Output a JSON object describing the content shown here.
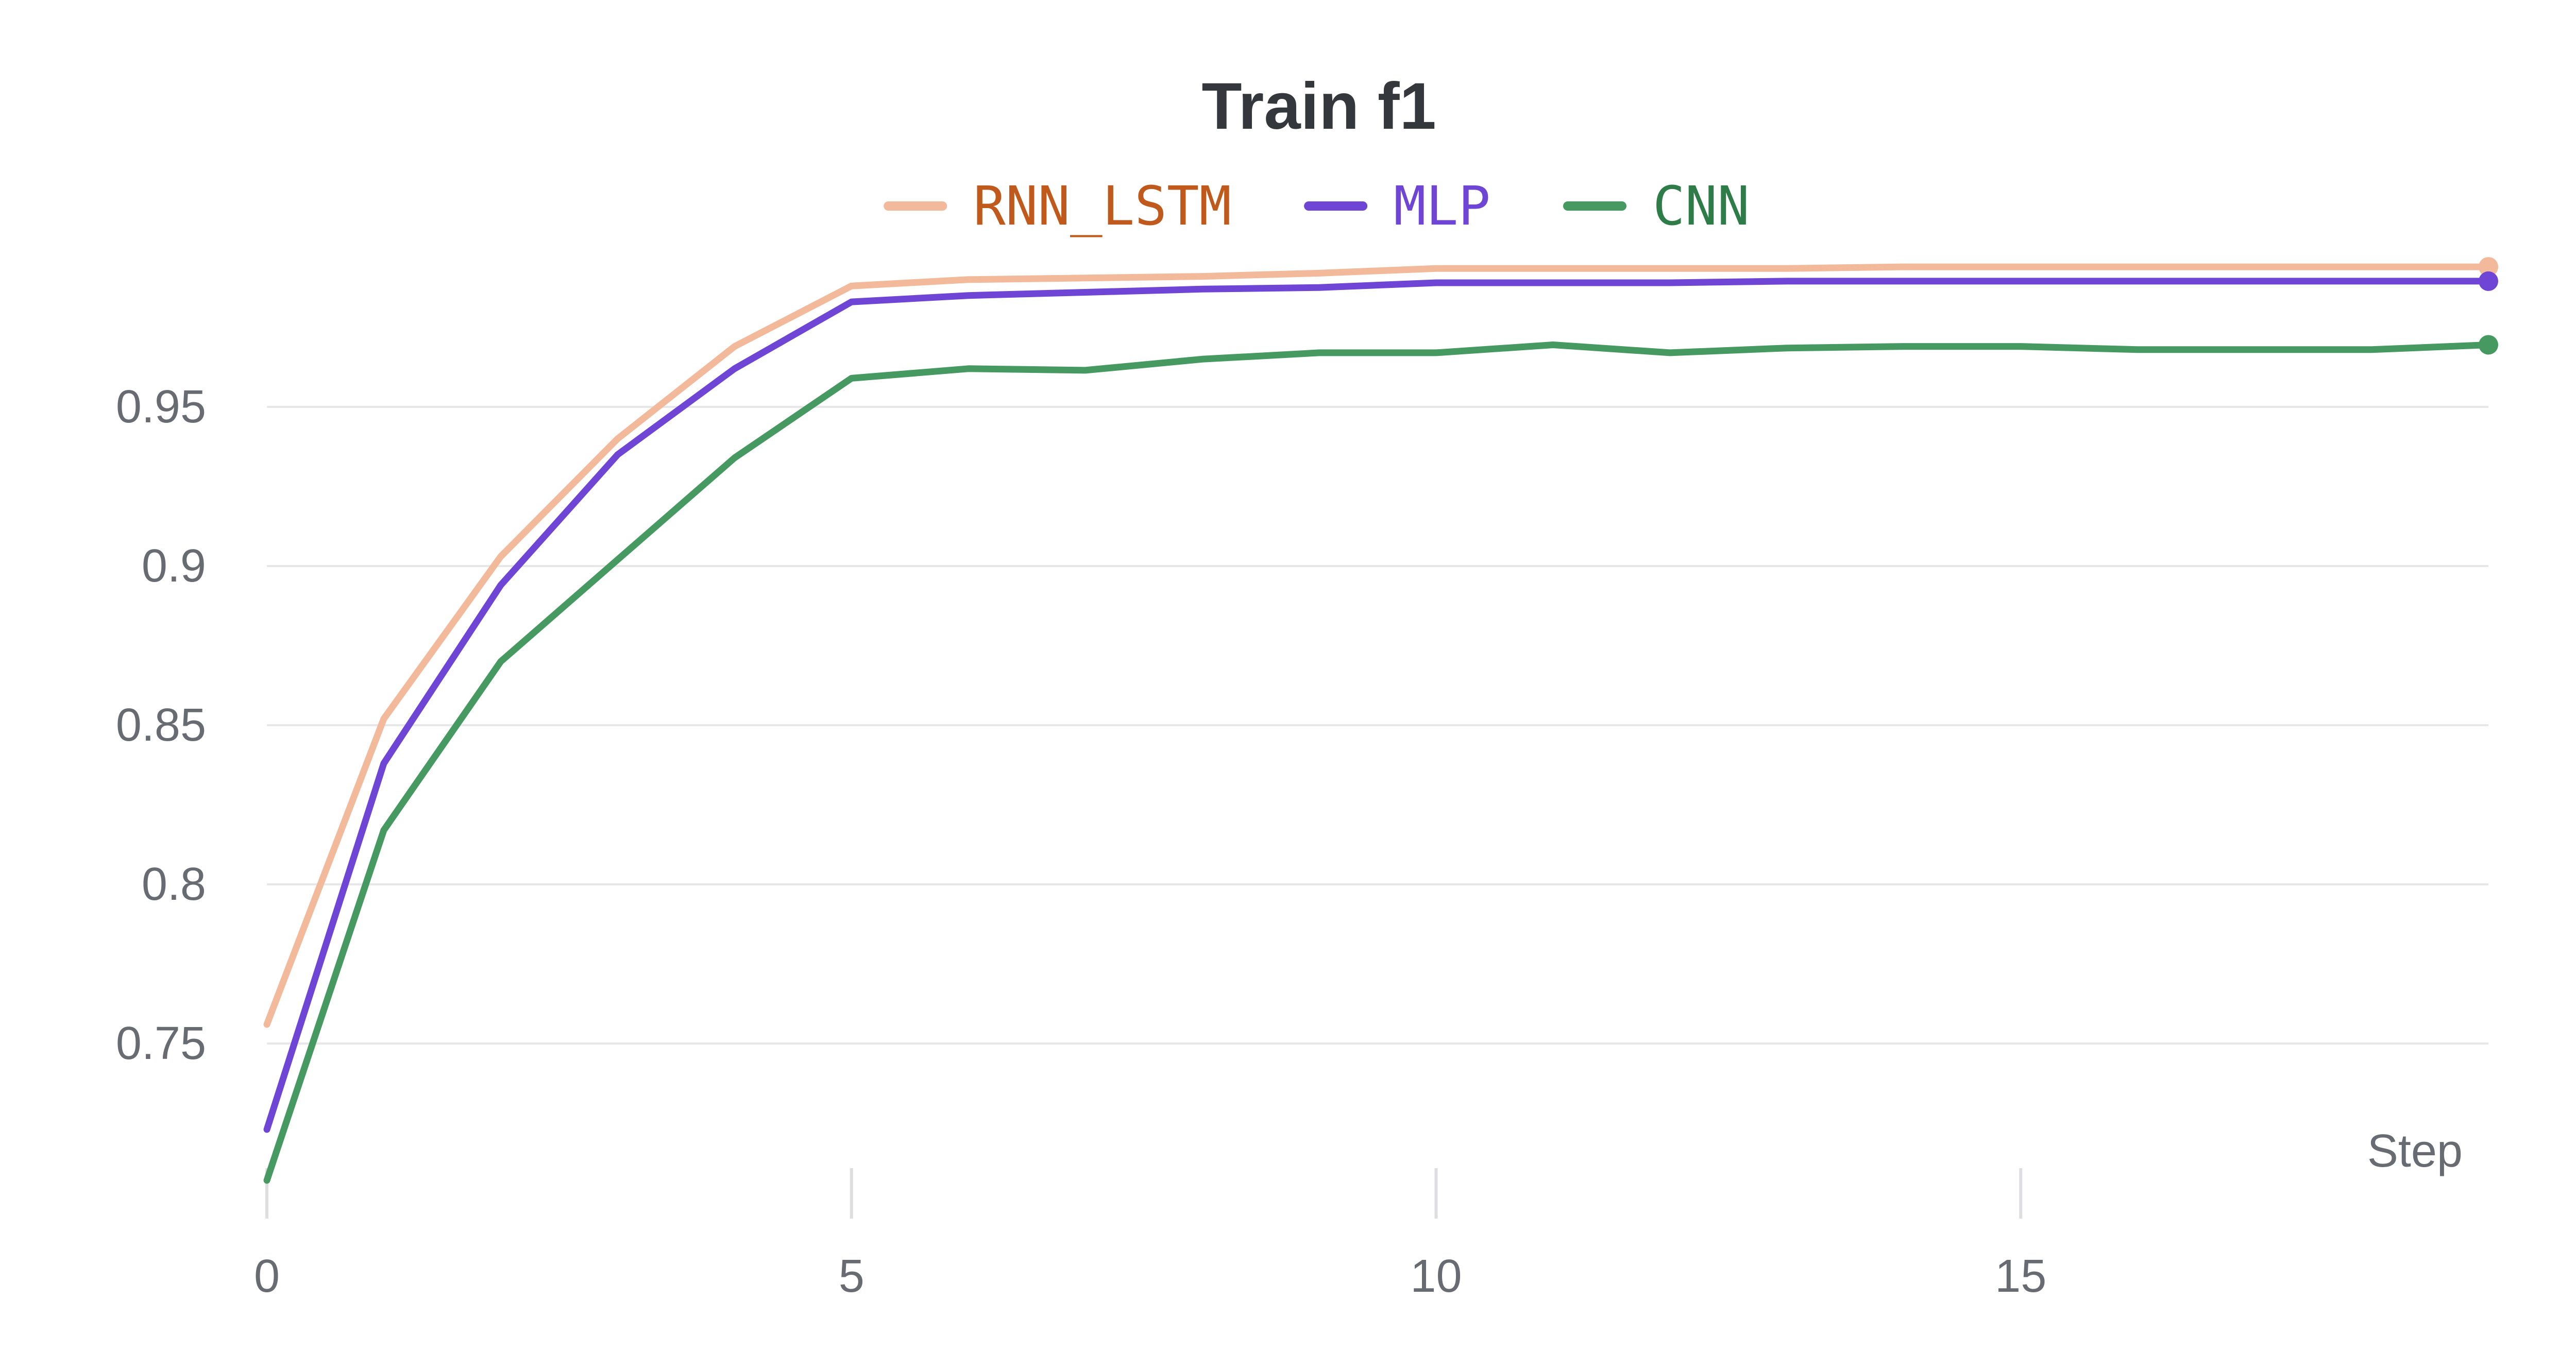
{
  "chart_data": {
    "type": "line",
    "title": "Train f1",
    "xlabel": "Step",
    "ylabel": "",
    "x": [
      0,
      1,
      2,
      3,
      4,
      5,
      6,
      7,
      8,
      9,
      10,
      11,
      12,
      13,
      14,
      15,
      16,
      17,
      18,
      19
    ],
    "xlim": [
      0,
      19
    ],
    "ylim": [
      0.7,
      0.995
    ],
    "xticks": [
      "0",
      "5",
      "10",
      "15"
    ],
    "xtick_values": [
      0,
      5,
      10,
      15
    ],
    "yticks": [
      "0.75",
      "0.8",
      "0.85",
      "0.9",
      "0.95"
    ],
    "ytick_values": [
      0.75,
      0.8,
      0.85,
      0.9,
      0.95
    ],
    "grid": "horizontal",
    "legend_position": "top-center",
    "series": [
      {
        "name": "RNN_LSTM",
        "color": "#f2b99a",
        "text_color": "#c05a1c",
        "values": [
          0.756,
          0.852,
          0.903,
          0.94,
          0.969,
          0.988,
          0.99,
          0.9905,
          0.991,
          0.992,
          0.9935,
          0.9935,
          0.9935,
          0.9935,
          0.994,
          0.994,
          0.994,
          0.994,
          0.994,
          0.994
        ]
      },
      {
        "name": "MLP",
        "color": "#6e45d4",
        "text_color": "#6e45d4",
        "values": [
          0.723,
          0.838,
          0.894,
          0.935,
          0.962,
          0.983,
          0.985,
          0.986,
          0.987,
          0.9875,
          0.989,
          0.989,
          0.989,
          0.9895,
          0.9895,
          0.9895,
          0.9895,
          0.9895,
          0.9895,
          0.9895
        ]
      },
      {
        "name": "CNN",
        "color": "#479962",
        "text_color": "#2e7d48",
        "values": [
          0.707,
          0.817,
          0.87,
          0.902,
          0.934,
          0.959,
          0.962,
          0.9615,
          0.965,
          0.967,
          0.967,
          0.9695,
          0.967,
          0.9685,
          0.969,
          0.969,
          0.968,
          0.968,
          0.968,
          0.9695
        ]
      }
    ]
  }
}
